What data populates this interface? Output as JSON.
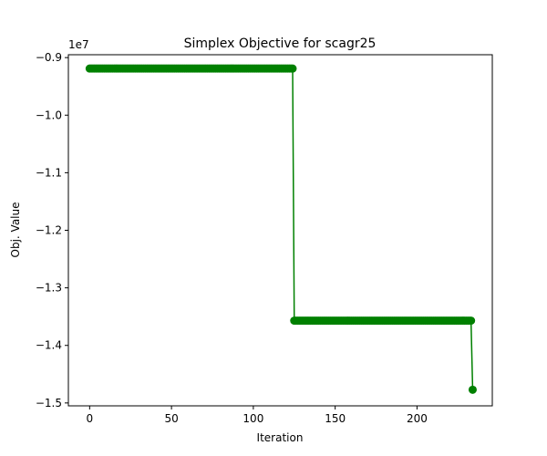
{
  "chart_data": {
    "type": "line",
    "title": "Simplex Objective for scagr25",
    "xlabel": "Iteration",
    "ylabel": "Obj. Value",
    "y_offset_label": "1e7",
    "y_scale_exponent": 7,
    "xlim": [
      -13,
      246
    ],
    "ylim": [
      -15.05,
      -8.95
    ],
    "x_ticks": [
      0,
      50,
      100,
      150,
      200
    ],
    "y_ticks": [
      -15,
      -14,
      -13,
      -12,
      -11,
      -10,
      -9
    ],
    "y_tick_labels": [
      "−1.5",
      "−1.4",
      "−1.3",
      "−1.2",
      "−1.1",
      "−1.0",
      "−0.9"
    ],
    "grid": false,
    "legend": "none",
    "series": [
      {
        "color": "#008000",
        "marker": "circle",
        "segments": [
          {
            "x_start": 0,
            "x_end": 124,
            "y": -9.19
          },
          {
            "x_start": 125,
            "x_end": 233,
            "y": -13.57
          },
          {
            "x_start": 234,
            "x_end": 234,
            "y": -14.77
          }
        ]
      }
    ]
  }
}
